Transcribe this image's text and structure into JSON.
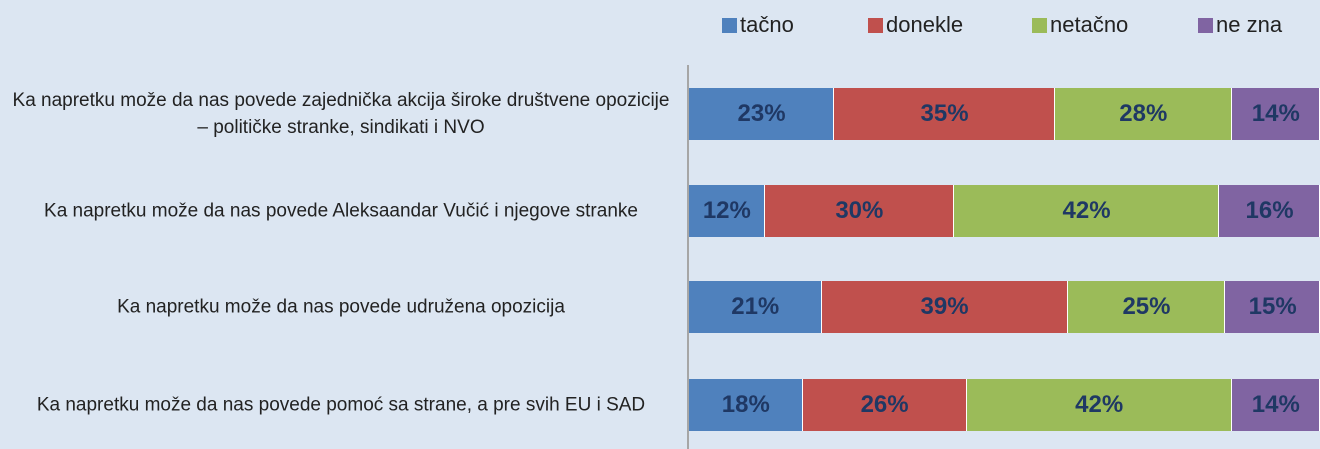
{
  "chart_data": {
    "type": "stacked-bar",
    "orientation": "horizontal",
    "categories": [
      "Ka napretku može da nas povede zajednička akcija široke društvene opozicije – političke stranke, sindikati i NVO",
      "Ka napretku može da nas povede Aleksaandar Vučić i njegove stranke",
      "Ka napretku može da nas povede udružena opozicija",
      "Ka napretku može da nas povede pomoć sa strane, a pre svih EU i SAD"
    ],
    "series": [
      {
        "name": "tačno",
        "color": "#4f81bd",
        "values": [
          23,
          12,
          21,
          18
        ],
        "value_labels": [
          "23%",
          "12%",
          "21%",
          "18%"
        ]
      },
      {
        "name": "donekle",
        "color": "#c0504d",
        "values": [
          35,
          30,
          39,
          26
        ],
        "value_labels": [
          "35%",
          "30%",
          "39%",
          "26%"
        ]
      },
      {
        "name": "netačno",
        "color": "#9bbb59",
        "values": [
          28,
          42,
          25,
          42
        ],
        "value_labels": [
          "28%",
          "42%",
          "25%",
          "42%"
        ]
      },
      {
        "name": "ne zna",
        "color": "#8064a2",
        "values": [
          14,
          16,
          15,
          14
        ],
        "value_labels": [
          "14%",
          "16%",
          "15%",
          "14%"
        ]
      }
    ],
    "xlim": [
      0,
      100
    ],
    "legend": "top-right"
  }
}
